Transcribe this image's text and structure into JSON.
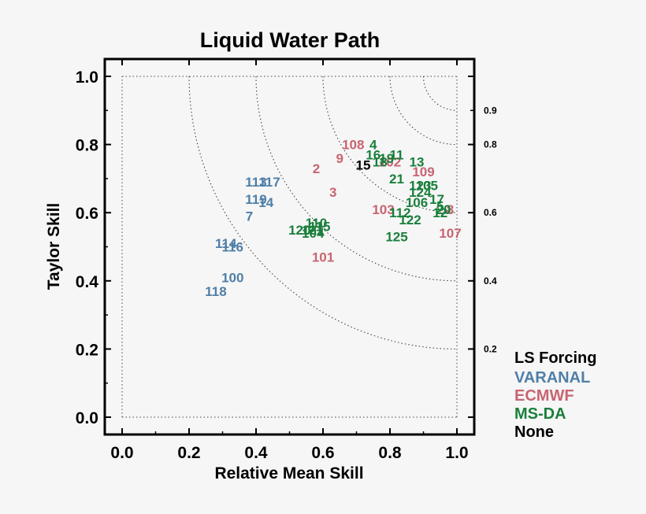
{
  "chart_data": {
    "type": "scatter",
    "title": "Liquid Water Path",
    "xlabel": "Relative Mean Skill",
    "ylabel": "Taylor Skill",
    "xlim": [
      0.0,
      1.0
    ],
    "ylim": [
      0.0,
      1.0
    ],
    "xticks": [
      "0.0",
      "0.2",
      "0.4",
      "0.6",
      "0.8",
      "1.0"
    ],
    "yticks": [
      "0.0",
      "0.2",
      "0.4",
      "0.6",
      "0.8",
      "1.0"
    ],
    "arc_labels": [
      {
        "text": "0.9",
        "y": 0.9
      },
      {
        "text": "0.8",
        "y": 0.8
      },
      {
        "text": "0.6",
        "y": 0.6
      },
      {
        "text": "0.4",
        "y": 0.4
      },
      {
        "text": "0.2",
        "y": 0.2
      }
    ],
    "arc_radii": [
      0.1,
      0.2,
      0.4,
      0.6,
      0.8
    ],
    "grid": true,
    "legend": {
      "title": "LS Forcing",
      "placement": "right",
      "entries": [
        {
          "name": "VARANAL",
          "color": "#4f7fa8"
        },
        {
          "name": "ECMWF",
          "color": "#c86472"
        },
        {
          "name": "MS-DA",
          "color": "#1a7f3c"
        },
        {
          "name": "None",
          "color": "#000000"
        }
      ]
    },
    "series": [
      {
        "name": "VARANAL",
        "color": "#4f7fa8",
        "points": [
          {
            "label": "113",
            "x": 0.4,
            "y": 0.69
          },
          {
            "label": "117",
            "x": 0.44,
            "y": 0.69
          },
          {
            "label": "119",
            "x": 0.4,
            "y": 0.64
          },
          {
            "label": "14",
            "x": 0.43,
            "y": 0.63
          },
          {
            "label": "7",
            "x": 0.38,
            "y": 0.59
          },
          {
            "label": "114",
            "x": 0.31,
            "y": 0.51
          },
          {
            "label": "116",
            "x": 0.33,
            "y": 0.5
          },
          {
            "label": "100",
            "x": 0.33,
            "y": 0.41
          },
          {
            "label": "118",
            "x": 0.28,
            "y": 0.37
          }
        ]
      },
      {
        "name": "ECMWF",
        "color": "#c86472",
        "points": [
          {
            "label": "108",
            "x": 0.69,
            "y": 0.8
          },
          {
            "label": "9",
            "x": 0.65,
            "y": 0.76
          },
          {
            "label": "2",
            "x": 0.58,
            "y": 0.73
          },
          {
            "label": "3",
            "x": 0.63,
            "y": 0.66
          },
          {
            "label": "102",
            "x": 0.8,
            "y": 0.75
          },
          {
            "label": "109",
            "x": 0.9,
            "y": 0.72
          },
          {
            "label": "103",
            "x": 0.78,
            "y": 0.61
          },
          {
            "label": "8",
            "x": 0.98,
            "y": 0.61
          },
          {
            "label": "107",
            "x": 0.98,
            "y": 0.54
          },
          {
            "label": "101",
            "x": 0.6,
            "y": 0.47
          }
        ]
      },
      {
        "name": "MS-DA",
        "color": "#1a7f3c",
        "points": [
          {
            "label": "4",
            "x": 0.75,
            "y": 0.8
          },
          {
            "label": "16",
            "x": 0.75,
            "y": 0.77
          },
          {
            "label": "19",
            "x": 0.79,
            "y": 0.76
          },
          {
            "label": "11",
            "x": 0.82,
            "y": 0.77
          },
          {
            "label": "18",
            "x": 0.77,
            "y": 0.75
          },
          {
            "label": "13",
            "x": 0.88,
            "y": 0.75
          },
          {
            "label": "21",
            "x": 0.82,
            "y": 0.7
          },
          {
            "label": "123",
            "x": 0.89,
            "y": 0.68
          },
          {
            "label": "105",
            "x": 0.91,
            "y": 0.68
          },
          {
            "label": "124",
            "x": 0.89,
            "y": 0.66
          },
          {
            "label": "17",
            "x": 0.94,
            "y": 0.64
          },
          {
            "label": "106",
            "x": 0.88,
            "y": 0.63
          },
          {
            "label": "5",
            "x": 0.95,
            "y": 0.62
          },
          {
            "label": "20",
            "x": 0.96,
            "y": 0.61
          },
          {
            "label": "12",
            "x": 0.95,
            "y": 0.6
          },
          {
            "label": "112",
            "x": 0.83,
            "y": 0.6
          },
          {
            "label": "122",
            "x": 0.86,
            "y": 0.58
          },
          {
            "label": "125",
            "x": 0.82,
            "y": 0.53
          },
          {
            "label": "110",
            "x": 0.58,
            "y": 0.57
          },
          {
            "label": "120",
            "x": 0.53,
            "y": 0.55
          },
          {
            "label": "121",
            "x": 0.57,
            "y": 0.55
          },
          {
            "label": "115",
            "x": 0.59,
            "y": 0.56
          },
          {
            "label": "104",
            "x": 0.57,
            "y": 0.54
          }
        ]
      },
      {
        "name": "None",
        "color": "#000000",
        "points": [
          {
            "label": "15",
            "x": 0.72,
            "y": 0.74
          }
        ]
      }
    ]
  }
}
